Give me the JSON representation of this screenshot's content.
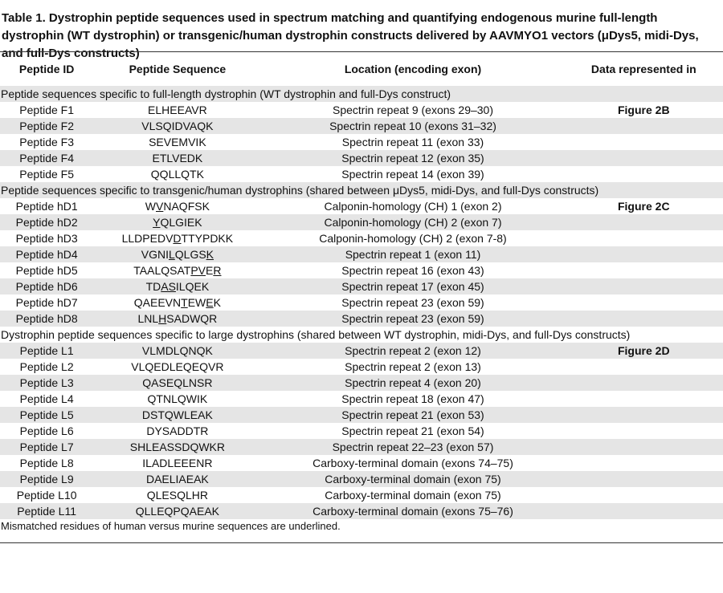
{
  "title": "Table 1. Dystrophin peptide sequences used in spectrum matching and quantifying endogenous murine full-length dystrophin (WT dystrophin) or transgenic/human dystrophin constructs delivered by AAVMYO1 vectors (μDys5, midi-Dys, and full-Dys constructs)",
  "table": {
    "columns": [
      "Peptide ID",
      "Peptide Sequence",
      "Location (encoding exon)",
      "Data represented in"
    ],
    "sections": [
      {
        "title": "Peptide sequences specific to full-length dystrophin (WT dystrophin and full-Dys construct)",
        "rows": [
          {
            "id": "Peptide F1",
            "sequence": [
              {
                "text": "ELHEEAVR"
              }
            ],
            "location": "Spectrin repeat 9 (exons 29–30)",
            "data": "Figure 2B"
          },
          {
            "id": "Peptide F2",
            "sequence": [
              {
                "text": "VLSQIDVAQK"
              }
            ],
            "location": "Spectrin repeat 10 (exons 31–32)"
          },
          {
            "id": "Peptide F3",
            "sequence": [
              {
                "text": "SEVEMVIK"
              }
            ],
            "location": "Spectrin repeat 11 (exon 33)"
          },
          {
            "id": "Peptide F4",
            "sequence": [
              {
                "text": "ETLVEDK"
              }
            ],
            "location": "Spectrin repeat 12 (exon 35)"
          },
          {
            "id": "Peptide F5",
            "sequence": [
              {
                "text": "QQLLQTK"
              }
            ],
            "location": "Spectrin repeat 14 (exon 39)"
          }
        ]
      },
      {
        "title": "Peptide sequences specific to transgenic/human dystrophins (shared between μDys5, midi-Dys, and full-Dys constructs)",
        "rows": [
          {
            "id": "Peptide hD1",
            "sequence": [
              {
                "text": "W"
              },
              {
                "text": "V",
                "underline": true
              },
              {
                "text": "NAQFSK"
              }
            ],
            "location": "Calponin-homology (CH) 1 (exon 2)",
            "data": "Figure 2C"
          },
          {
            "id": "Peptide hD2",
            "sequence": [
              {
                "text": "Y",
                "underline": true
              },
              {
                "text": "QLGIEK"
              }
            ],
            "location": "Calponin-homology (CH) 2 (exon 7)"
          },
          {
            "id": "Peptide hD3",
            "sequence": [
              {
                "text": "LLDPEDV"
              },
              {
                "text": "D",
                "underline": true
              },
              {
                "text": "TTYPDKK"
              }
            ],
            "location": "Calponin-homology (CH) 2 (exon 7-8)"
          },
          {
            "id": "Peptide hD4",
            "sequence": [
              {
                "text": "VGNI"
              },
              {
                "text": "L",
                "underline": true
              },
              {
                "text": "QLGS"
              },
              {
                "text": "K",
                "underline": true
              }
            ],
            "location": "Spectrin repeat 1 (exon 11)"
          },
          {
            "id": "Peptide hD5",
            "sequence": [
              {
                "text": "TAALQSAT"
              },
              {
                "text": "PV",
                "underline": true
              },
              {
                "text": "E"
              },
              {
                "text": "R",
                "underline": true
              }
            ],
            "location": "Spectrin repeat 16 (exon 43)"
          },
          {
            "id": "Peptide hD6",
            "sequence": [
              {
                "text": "TD"
              },
              {
                "text": "AS",
                "underline": true
              },
              {
                "text": "ILQEK"
              }
            ],
            "location": "Spectrin repeat 17 (exon 45)"
          },
          {
            "id": "Peptide hD7",
            "sequence": [
              {
                "text": "QAEEVN"
              },
              {
                "text": "T",
                "underline": true
              },
              {
                "text": "EW"
              },
              {
                "text": "E",
                "underline": true
              },
              {
                "text": "K"
              }
            ],
            "location": "Spectrin repeat 23 (exon 59)"
          },
          {
            "id": "Peptide hD8",
            "sequence": [
              {
                "text": "LNL"
              },
              {
                "text": "H",
                "underline": true
              },
              {
                "text": "SADWQR"
              }
            ],
            "location": "Spectrin repeat 23 (exon 59)"
          }
        ]
      },
      {
        "title": "Dystrophin peptide sequences specific to large dystrophins (shared between WT dystrophin, midi-Dys, and full-Dys constructs)",
        "rows": [
          {
            "id": "Peptide L1",
            "sequence": [
              {
                "text": "VLMDLQNQK"
              }
            ],
            "location": "Spectrin repeat 2 (exon 12)",
            "data": "Figure 2D"
          },
          {
            "id": "Peptide L2",
            "sequence": [
              {
                "text": "VLQEDLEQEQVR"
              }
            ],
            "location": "Spectrin repeat 2 (exon 13)"
          },
          {
            "id": "Peptide L3",
            "sequence": [
              {
                "text": "QASEQLNSR"
              }
            ],
            "location": "Spectrin repeat 4 (exon 20)"
          },
          {
            "id": "Peptide L4",
            "sequence": [
              {
                "text": "QTNLQWIK"
              }
            ],
            "location": "Spectrin repeat 18 (exon 47)"
          },
          {
            "id": "Peptide L5",
            "sequence": [
              {
                "text": "DSTQWLEAK"
              }
            ],
            "location": "Spectrin repeat 21 (exon 53)"
          },
          {
            "id": "Peptide L6",
            "sequence": [
              {
                "text": "DYSADDTR"
              }
            ],
            "location": "Spectrin repeat 21 (exon 54)"
          },
          {
            "id": "Peptide L7",
            "sequence": [
              {
                "text": "SHLEASSDQWKR"
              }
            ],
            "location": "Spectrin repeat 22–23 (exon 57)"
          },
          {
            "id": "Peptide L8",
            "sequence": [
              {
                "text": "ILADLEEENR"
              }
            ],
            "location": "Carboxy-terminal domain (exons 74–75)"
          },
          {
            "id": "Peptide L9",
            "sequence": [
              {
                "text": "DAELIAEAK"
              }
            ],
            "location": "Carboxy-terminal domain (exon 75)"
          },
          {
            "id": "Peptide L10",
            "sequence": [
              {
                "text": "QLESQLHR"
              }
            ],
            "location": "Carboxy-terminal domain (exon 75)"
          },
          {
            "id": "Peptide L11",
            "sequence": [
              {
                "text": "QLLEQPQAEAK"
              }
            ],
            "location": "Carboxy-terminal domain (exons 75–76)"
          }
        ]
      }
    ]
  },
  "note": "Mismatched residues of human versus murine sequences are underlined."
}
